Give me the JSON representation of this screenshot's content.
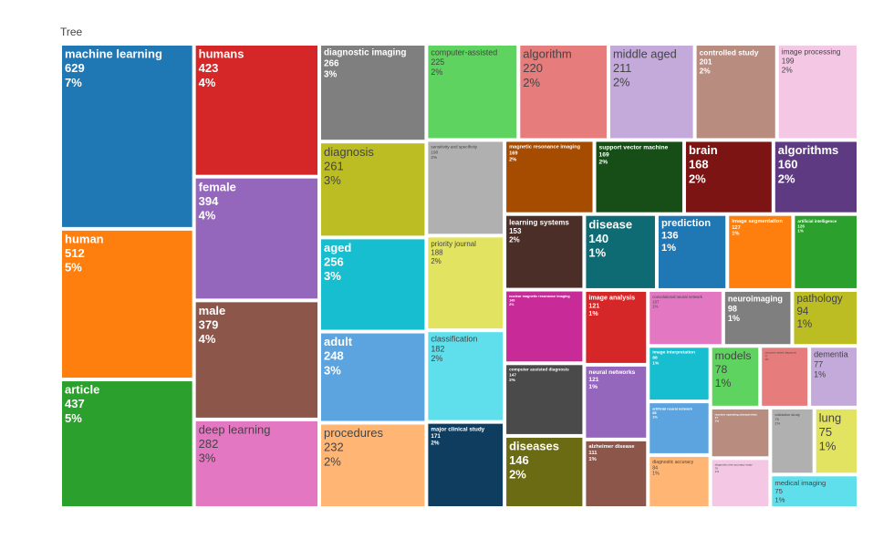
{
  "chart_data": {
    "type": "treemap",
    "title": "Tree",
    "categories": [
      "machine learning",
      "human",
      "article",
      "humans",
      "female",
      "male",
      "deep learning",
      "diagnostic imaging",
      "diagnosis",
      "aged",
      "adult",
      "procedures",
      "computer-assisted",
      "algorithm",
      "middle aged",
      "controlled study",
      "image processing",
      "sensitivity and specificity",
      "priority journal",
      "classification",
      "major clinical study",
      "magnetic resonance imaging",
      "support vector machine",
      "brain",
      "algorithms",
      "learning systems",
      "nuclear magnetic resonance imaging",
      "computer assisted diagnosis",
      "diseases",
      "disease",
      "prediction",
      "image segmentation",
      "artificial intelligence",
      "image analysis",
      "neural networks",
      "alzheimer disease",
      "convolutional neural network",
      "neuroimaging",
      "pathology",
      "image interpretation",
      "artificial neural network",
      "diagnostic accuracy",
      "models",
      "computer aided diagnosis",
      "dementia",
      "receiver operating characteristic",
      "diagnostic test accuracy study",
      "validation study",
      "lung",
      "medical imaging"
    ],
    "values": [
      629,
      512,
      437,
      423,
      394,
      379,
      282,
      266,
      261,
      256,
      248,
      232,
      225,
      220,
      211,
      201,
      199,
      190,
      188,
      182,
      171,
      169,
      169,
      168,
      160,
      153,
      149,
      147,
      146,
      140,
      136,
      127,
      126,
      121,
      121,
      111,
      107,
      98,
      94,
      88,
      85,
      84,
      78,
      77,
      77,
      77,
      76,
      75,
      75,
      75
    ],
    "shares": [
      "7%",
      "5%",
      "5%",
      "4%",
      "4%",
      "4%",
      "3%",
      "3%",
      "3%",
      "3%",
      "3%",
      "2%",
      "2%",
      "2%",
      "2%",
      "2%",
      "2%",
      "2%",
      "2%",
      "2%",
      "2%",
      "2%",
      "2%",
      "2%",
      "2%",
      "2%",
      "2%",
      "2%",
      "2%",
      "1%",
      "1%",
      "1%",
      "1%",
      "1%",
      "1%",
      "1%",
      "1%",
      "1%",
      "1%",
      "1%",
      "1%",
      "1%",
      "1%",
      "1%",
      "1%",
      "1%",
      "1%",
      "1%",
      "1%",
      "1%"
    ],
    "colors": [
      "#1f77b4",
      "#ff7f0e",
      "#2ca02c",
      "#d62728",
      "#9467bd",
      "#8c564b",
      "#e377c2",
      "#7f7f7f",
      "#bcbd22",
      "#17becf",
      "#5ba4e0",
      "#ffb574",
      "#5fd35f",
      "#e67c7c",
      "#c4a9db",
      "#b98c80",
      "#f4c8e5",
      "#b0b0b0",
      "#e2e360",
      "#5edfeb",
      "#0f3d60",
      "#a64c00",
      "#174d17",
      "#7d1414",
      "#5e3a82",
      "#4b2e28",
      "#c82a98",
      "#4a4a4a",
      "#6b6b13",
      "#0e6b73",
      "#1f77b4",
      "#ff7f0e",
      "#2ca02c",
      "#d62728",
      "#9467bd",
      "#8c564b",
      "#e377c2",
      "#7f7f7f",
      "#bcbd22",
      "#17becf",
      "#5ba4e0",
      "#ffb574",
      "#5fd35f",
      "#e67c7c",
      "#c4a9db",
      "#b98c80",
      "#f4c8e5",
      "#b0b0b0",
      "#e2e360",
      "#5edfeb"
    ]
  }
}
